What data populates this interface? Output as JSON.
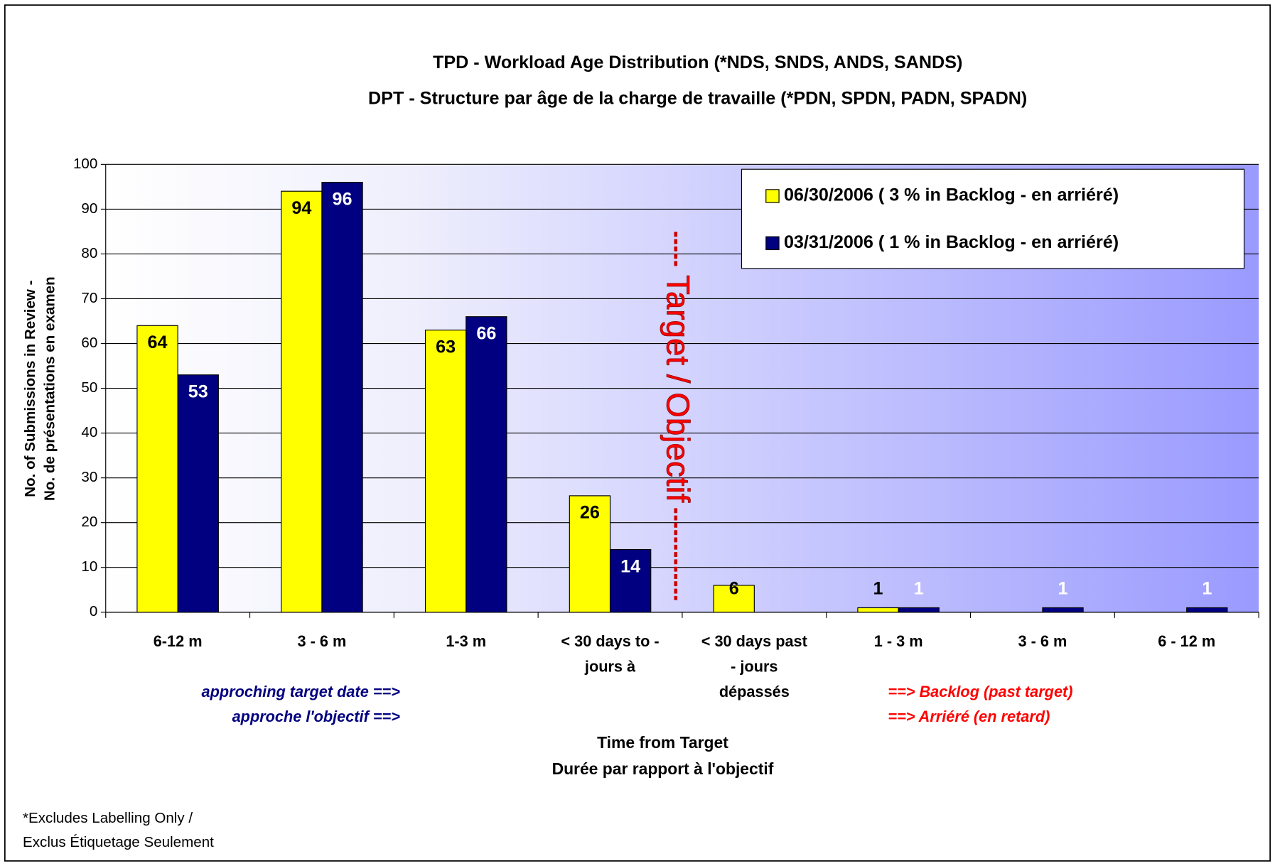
{
  "chart_data": {
    "type": "bar",
    "title": [
      "TPD -  Workload Age Distribution (*NDS, SNDS, ANDS, SANDS)",
      "DPT - Structure par âge de la charge de travaille (*PDN, SPDN, PADN, SPADN)"
    ],
    "categories": [
      [
        "6-12 m"
      ],
      [
        "3 - 6 m"
      ],
      [
        "1-3 m"
      ],
      [
        "< 30 days to -",
        "jours à"
      ],
      [
        "<  30 days past",
        "- jours",
        "dépassés"
      ],
      [
        "1 - 3 m"
      ],
      [
        "3 - 6 m"
      ],
      [
        "6 - 12 m"
      ]
    ],
    "series": [
      {
        "name": "06/30/2006 ( 3 % in Backlog - en arriéré)",
        "color": "#ffff00",
        "label_color": "#000000",
        "values": [
          64,
          94,
          63,
          26,
          6,
          1,
          null,
          null
        ]
      },
      {
        "name": "03/31/2006 ( 1 % in Backlog - en arriéré)",
        "color": "#000080",
        "label_color": "#ffffff",
        "values": [
          53,
          96,
          66,
          14,
          null,
          1,
          1,
          1
        ]
      }
    ],
    "ylim": [
      0,
      100
    ],
    "yticks": [
      0,
      10,
      20,
      30,
      40,
      50,
      60,
      70,
      80,
      90,
      100
    ],
    "grid": true,
    "legend": "top-right",
    "y_label": [
      "No. of Submissions in Review -",
      "No. de présentations en examen"
    ],
    "x_label": [
      "Time from Target",
      "Durée par rapport à l'objectif"
    ],
    "target_label": "Target / Objectif",
    "annotations_left": [
      "approching target date ==>",
      "approche l'objectif ==>"
    ],
    "annotations_right": [
      "==> Backlog (past target)",
      "==> Arriéré (en retard)"
    ],
    "footnote": [
      "*Excludes Labelling Only /",
      "Exclus Étiquetage Seulement"
    ]
  }
}
